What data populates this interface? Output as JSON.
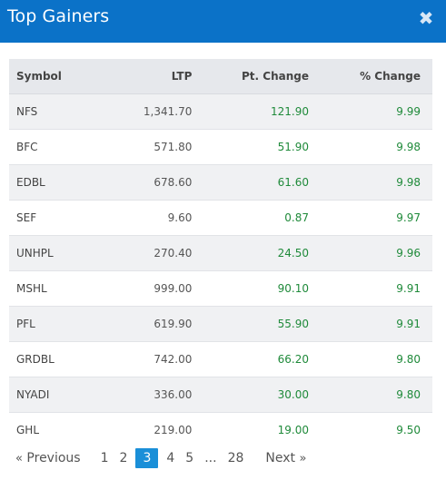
{
  "dialog": {
    "title": "Top Gainers",
    "close_label": "✖"
  },
  "table": {
    "headers": {
      "symbol": "Symbol",
      "ltp": "LTP",
      "pt_change": "Pt. Change",
      "pct_change": "% Change"
    },
    "rows": [
      {
        "symbol": "NFS",
        "ltp": "1,341.70",
        "pt_change": "121.90",
        "pct_change": "9.99"
      },
      {
        "symbol": "BFC",
        "ltp": "571.80",
        "pt_change": "51.90",
        "pct_change": "9.98"
      },
      {
        "symbol": "EDBL",
        "ltp": "678.60",
        "pt_change": "61.60",
        "pct_change": "9.98"
      },
      {
        "symbol": "SEF",
        "ltp": "9.60",
        "pt_change": "0.87",
        "pct_change": "9.97"
      },
      {
        "symbol": "UNHPL",
        "ltp": "270.40",
        "pt_change": "24.50",
        "pct_change": "9.96"
      },
      {
        "symbol": "MSHL",
        "ltp": "999.00",
        "pt_change": "90.10",
        "pct_change": "9.91"
      },
      {
        "symbol": "PFL",
        "ltp": "619.90",
        "pt_change": "55.90",
        "pct_change": "9.91"
      },
      {
        "symbol": "GRDBL",
        "ltp": "742.00",
        "pt_change": "66.20",
        "pct_change": "9.80"
      },
      {
        "symbol": "NYADI",
        "ltp": "336.00",
        "pt_change": "30.00",
        "pct_change": "9.80"
      },
      {
        "symbol": "GHL",
        "ltp": "219.00",
        "pt_change": "19.00",
        "pct_change": "9.50"
      }
    ]
  },
  "pagination": {
    "prev_chevron": "«",
    "prev_label": "Previous",
    "pages": [
      "1",
      "2",
      "3",
      "4",
      "5",
      "...",
      "28"
    ],
    "current_page": "3",
    "next_label": "Next",
    "next_chevron": "»"
  },
  "colors": {
    "header_bg": "#0b72c8",
    "positive": "#1f8a3a",
    "active_page": "#1a8fd8"
  }
}
